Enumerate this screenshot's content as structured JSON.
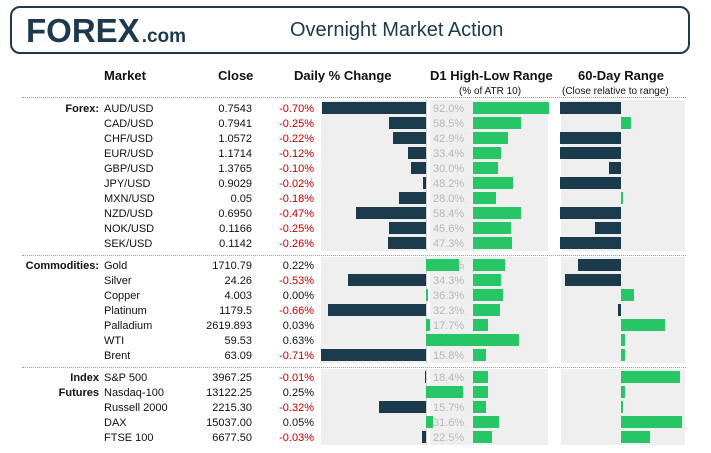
{
  "header": {
    "logo_main": "FOREX",
    "logo_suffix": ".com",
    "title": "Overnight Market Action"
  },
  "colors": {
    "dark_bar": "#1b3a4b",
    "green_bar": "#27c565",
    "negative_text": "#c00000",
    "panel_bg": "#efefef",
    "atr_text": "#b8b8b8"
  },
  "columns": {
    "market": "Market",
    "close": "Close",
    "daily_change": "Daily % Change",
    "d1_range": "D1 High-Low Range",
    "d1_range_sub": "(% of ATR 10)",
    "range_60": "60-Day Range",
    "range_60_sub": "(Close relative to range)"
  },
  "chart_data": {
    "type": "table",
    "groups": [
      {
        "label_lines": [
          "Forex:"
        ],
        "rows": [
          {
            "name": "AUD/USD",
            "close": "0.7543",
            "change_text": "-0.70%",
            "change": -0.7,
            "atr_text": "92.0%",
            "atr": 92.0,
            "range60": -1.0
          },
          {
            "name": "CAD/USD",
            "close": "0.7941",
            "change_text": "-0.25%",
            "change": -0.25,
            "atr_text": "58.5%",
            "atr": 58.5,
            "range60": 0.16
          },
          {
            "name": "CHF/USD",
            "close": "1.0572",
            "change_text": "-0.22%",
            "change": -0.22,
            "atr_text": "42.9%",
            "atr": 42.9,
            "range60": -1.0
          },
          {
            "name": "EUR/USD",
            "close": "1.1714",
            "change_text": "-0.12%",
            "change": -0.12,
            "atr_text": "33.4%",
            "atr": 33.4,
            "range60": -1.0
          },
          {
            "name": "GBP/USD",
            "close": "1.3765",
            "change_text": "-0.10%",
            "change": -0.1,
            "atr_text": "30.0%",
            "atr": 30.0,
            "range60": -0.2
          },
          {
            "name": "JPY/USD",
            "close": "0.9029",
            "change_text": "-0.02%",
            "change": -0.02,
            "atr_text": "48.2%",
            "atr": 48.2,
            "range60": -1.0
          },
          {
            "name": "MXN/USD",
            "close": "0.05",
            "change_text": "-0.18%",
            "change": -0.18,
            "atr_text": "28.0%",
            "atr": 28.0,
            "range60": 0.04
          },
          {
            "name": "NZD/USD",
            "close": "0.6950",
            "change_text": "-0.47%",
            "change": -0.47,
            "atr_text": "58.4%",
            "atr": 58.4,
            "range60": -1.0
          },
          {
            "name": "NOK/USD",
            "close": "0.1166",
            "change_text": "-0.25%",
            "change": -0.25,
            "atr_text": "45.6%",
            "atr": 45.6,
            "range60": -0.43
          },
          {
            "name": "SEK/USD",
            "close": "0.1142",
            "change_text": "-0.26%",
            "change": -0.26,
            "atr_text": "47.3%",
            "atr": 47.3,
            "range60": -1.0
          }
        ]
      },
      {
        "label_lines": [
          "Commodities:"
        ],
        "rows": [
          {
            "name": "Gold",
            "close": "1710.79",
            "change_text": "0.22%",
            "change": 0.22,
            "atr_text": "39.3%",
            "atr": 39.3,
            "range60": -0.7
          },
          {
            "name": "Silver",
            "close": "24.26",
            "change_text": "-0.53%",
            "change": -0.53,
            "atr_text": "34.3%",
            "atr": 34.3,
            "range60": -0.92
          },
          {
            "name": "Copper",
            "close": "4.003",
            "change_text": "0.00%",
            "change": 0.0,
            "atr_text": "36.3%",
            "atr": 36.3,
            "range60": 0.22
          },
          {
            "name": "Platinum",
            "close": "1179.5",
            "change_text": "-0.66%",
            "change": -0.66,
            "atr_text": "32.3%",
            "atr": 32.3,
            "range60": -0.05
          },
          {
            "name": "Palladium",
            "close": "2619.893",
            "change_text": "0.03%",
            "change": 0.03,
            "atr_text": "17.7%",
            "atr": 17.7,
            "range60": 0.72
          },
          {
            "name": "WTI",
            "close": "59.53",
            "change_text": "0.63%",
            "change": 0.63,
            "atr_text": "15.1%",
            "atr": 15.1,
            "range60": 0.07
          },
          {
            "name": "Brent",
            "close": "63.09",
            "change_text": "-0.71%",
            "change": -0.71,
            "atr_text": "15.8%",
            "atr": 15.8,
            "range60": 0.06
          }
        ]
      },
      {
        "label_lines": [
          "Index",
          "Futures"
        ],
        "rows": [
          {
            "name": "S&P 500",
            "close": "3967.25",
            "change_text": "-0.01%",
            "change": -0.01,
            "atr_text": "18.4%",
            "atr": 18.4,
            "range60": 0.96
          },
          {
            "name": "Nasdaq-100",
            "close": "13122.25",
            "change_text": "0.25%",
            "change": 0.25,
            "atr_text": "18.2%",
            "atr": 18.2,
            "range60": 0.07
          },
          {
            "name": "Russell 2000",
            "close": "2215.30",
            "change_text": "-0.32%",
            "change": -0.32,
            "atr_text": "15.7%",
            "atr": 15.7,
            "range60": 0.04
          },
          {
            "name": "DAX",
            "close": "15037.00",
            "change_text": "0.05%",
            "change": 0.05,
            "atr_text": "31.6%",
            "atr": 31.6,
            "range60": 1.0
          },
          {
            "name": "FTSE 100",
            "close": "6677.50",
            "change_text": "-0.03%",
            "change": -0.03,
            "atr_text": "22.5%",
            "atr": 22.5,
            "range60": 0.47
          }
        ]
      }
    ]
  }
}
